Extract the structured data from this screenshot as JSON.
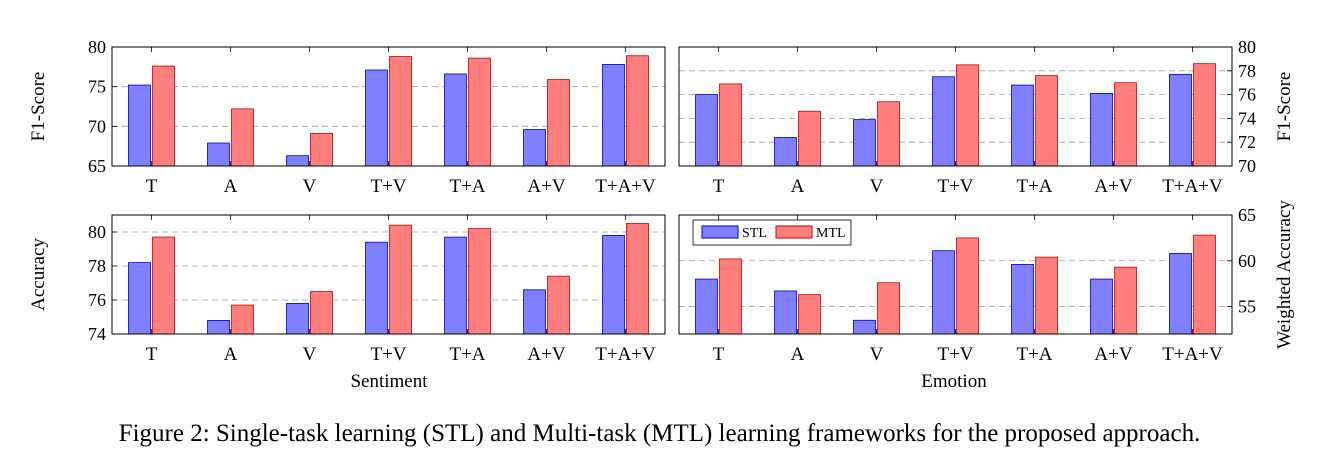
{
  "caption": "Figure 2: Single-task learning (STL) and Multi-task (MTL) learning frameworks for the proposed approach.",
  "legend": {
    "placement": "top-left of bottom-right panel",
    "entries": [
      "STL",
      "MTL"
    ]
  },
  "colors": {
    "STL": "#7f7fff",
    "STL_stroke": "#0000cc",
    "MTL": "#ff7f7f",
    "MTL_stroke": "#cc0000",
    "grid": "#a0a0a0"
  },
  "group_labels": {
    "sentiment": "Sentiment",
    "emotion": "Emotion"
  },
  "chart_data": [
    {
      "type": "bar",
      "panel": "sentiment-f1",
      "categories": [
        "T",
        "A",
        "V",
        "T+V",
        "T+A",
        "A+V",
        "T+A+V"
      ],
      "series": [
        {
          "name": "STL",
          "values": [
            75.2,
            67.9,
            66.3,
            77.1,
            76.6,
            69.6,
            77.8
          ]
        },
        {
          "name": "MTL",
          "values": [
            77.6,
            72.2,
            69.1,
            78.8,
            78.6,
            75.9,
            78.9
          ]
        }
      ],
      "ylabel": "F1-Score",
      "ylim": [
        65,
        80
      ],
      "yticks": [
        "65",
        "70",
        "75",
        "80"
      ],
      "yaxis_side": "left",
      "grid": "dashed horizontal"
    },
    {
      "type": "bar",
      "panel": "emotion-f1",
      "categories": [
        "T",
        "A",
        "V",
        "T+V",
        "T+A",
        "A+V",
        "T+A+V"
      ],
      "series": [
        {
          "name": "STL",
          "values": [
            76.0,
            72.4,
            73.9,
            77.5,
            76.8,
            76.1,
            77.7
          ]
        },
        {
          "name": "MTL",
          "values": [
            76.9,
            74.6,
            75.4,
            78.5,
            77.6,
            77.0,
            78.6
          ]
        }
      ],
      "ylabel": "F1-Score",
      "ylim": [
        70,
        80
      ],
      "yticks": [
        "70",
        "72",
        "74",
        "76",
        "78",
        "80"
      ],
      "yaxis_side": "right",
      "grid": "dashed horizontal"
    },
    {
      "type": "bar",
      "panel": "sentiment-accuracy",
      "categories": [
        "T",
        "A",
        "V",
        "T+V",
        "T+A",
        "A+V",
        "T+A+V"
      ],
      "series": [
        {
          "name": "STL",
          "values": [
            78.2,
            74.8,
            75.8,
            79.4,
            79.7,
            76.6,
            79.8
          ]
        },
        {
          "name": "MTL",
          "values": [
            79.7,
            75.7,
            76.5,
            80.4,
            80.2,
            77.4,
            80.5
          ]
        }
      ],
      "ylabel": "Accuracy",
      "ylim": [
        74,
        81
      ],
      "yticks": [
        "74",
        "76",
        "78",
        "80"
      ],
      "yaxis_side": "left",
      "grid": "dashed horizontal"
    },
    {
      "type": "bar",
      "panel": "emotion-weighted-accuracy",
      "categories": [
        "T",
        "A",
        "V",
        "T+V",
        "T+A",
        "A+V",
        "T+A+V"
      ],
      "series": [
        {
          "name": "STL",
          "values": [
            58.0,
            56.7,
            53.5,
            61.1,
            59.6,
            58.0,
            60.8
          ]
        },
        {
          "name": "MTL",
          "values": [
            60.2,
            56.3,
            57.6,
            62.5,
            60.4,
            59.3,
            62.8
          ]
        }
      ],
      "ylabel": "Weighted Accuracy",
      "ylim": [
        52,
        65
      ],
      "yticks": [
        "55",
        "60",
        "65"
      ],
      "yaxis_side": "right",
      "grid": "dashed horizontal"
    }
  ]
}
